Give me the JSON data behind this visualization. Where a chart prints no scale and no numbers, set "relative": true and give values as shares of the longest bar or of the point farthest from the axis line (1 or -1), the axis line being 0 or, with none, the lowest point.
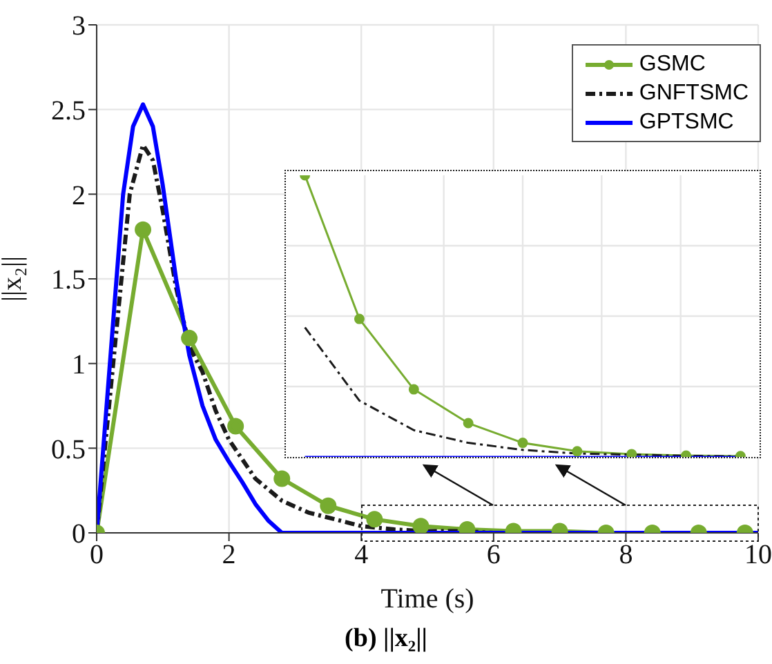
{
  "chart_data": [
    {
      "type": "line",
      "title": "(b) ||x₂||",
      "xlabel": "Time (s)",
      "ylabel": "||x₂||",
      "xlim": [
        0,
        10
      ],
      "ylim": [
        0,
        3
      ],
      "xticks": [
        0,
        2,
        4,
        6,
        8,
        10
      ],
      "yticks": [
        0,
        0.5,
        1,
        1.5,
        2,
        2.5,
        3
      ],
      "grid": true,
      "legend": "top right",
      "series": [
        {
          "name": "GSMC",
          "color": "#77ac30",
          "marker": "circle",
          "line_style": "solid",
          "x": [
            0,
            0.7,
            1.4,
            2.1,
            2.8,
            3.5,
            4.2,
            4.9,
            5.6,
            6.3,
            7.0,
            7.7,
            8.4,
            9.1,
            9.8
          ],
          "values": [
            0,
            1.79,
            1.15,
            0.63,
            0.32,
            0.16,
            0.08,
            0.04,
            0.02,
            0.01,
            0.01,
            0,
            0,
            0,
            0
          ]
        },
        {
          "name": "GNFTSMC",
          "color": "#1a1a1a",
          "marker": "none",
          "line_style": "dashed",
          "x": [
            0,
            0.15,
            0.3,
            0.5,
            0.7,
            0.85,
            1.0,
            1.2,
            1.4,
            1.6,
            1.8,
            2.0,
            2.4,
            2.8,
            3.2,
            3.6,
            4.0,
            4.5,
            5.0,
            5.5,
            6.0,
            7.0,
            8.0,
            9.0,
            10.0
          ],
          "values": [
            0,
            0.6,
            1.2,
            2.0,
            2.29,
            2.2,
            1.9,
            1.45,
            1.1,
            0.95,
            0.72,
            0.55,
            0.32,
            0.19,
            0.12,
            0.08,
            0.04,
            0.02,
            0.01,
            0.01,
            0,
            0,
            0,
            0,
            0
          ]
        },
        {
          "name": "GPTSMC",
          "color": "#0000ff",
          "marker": "none",
          "line_style": "solid",
          "x": [
            0,
            0.2,
            0.4,
            0.55,
            0.7,
            0.85,
            1.0,
            1.2,
            1.4,
            1.6,
            1.8,
            2.0,
            2.2,
            2.4,
            2.6,
            2.8,
            10
          ],
          "values": [
            0,
            1.0,
            2.0,
            2.4,
            2.53,
            2.4,
            2.05,
            1.5,
            1.05,
            0.75,
            0.55,
            0.42,
            0.3,
            0.17,
            0.07,
            0,
            0
          ]
        }
      ]
    },
    {
      "type": "line",
      "relative": true,
      "categories": [
        null,
        null,
        null,
        null,
        null,
        null,
        null,
        null,
        null
      ],
      "grid": true,
      "series": [
        {
          "color": "#77ac30",
          "marker": "circle",
          "line_style": "solid",
          "values": [
            1,
            0.49,
            0.24,
            0.12,
            0.05,
            0.02,
            0.01,
            0.005,
            0.003
          ]
        },
        {
          "color": "#1a1a1a",
          "marker": "none",
          "line_style": "dashed",
          "values": [
            0.46,
            0.2,
            0.095,
            0.05,
            0.025,
            0.012,
            0.008,
            0.004,
            0.002
          ]
        },
        {
          "color": "#0000ff",
          "marker": "none",
          "line_style": "solid",
          "values": [
            0,
            0,
            0,
            0,
            0,
            0,
            0,
            0,
            0
          ]
        }
      ]
    }
  ]
}
